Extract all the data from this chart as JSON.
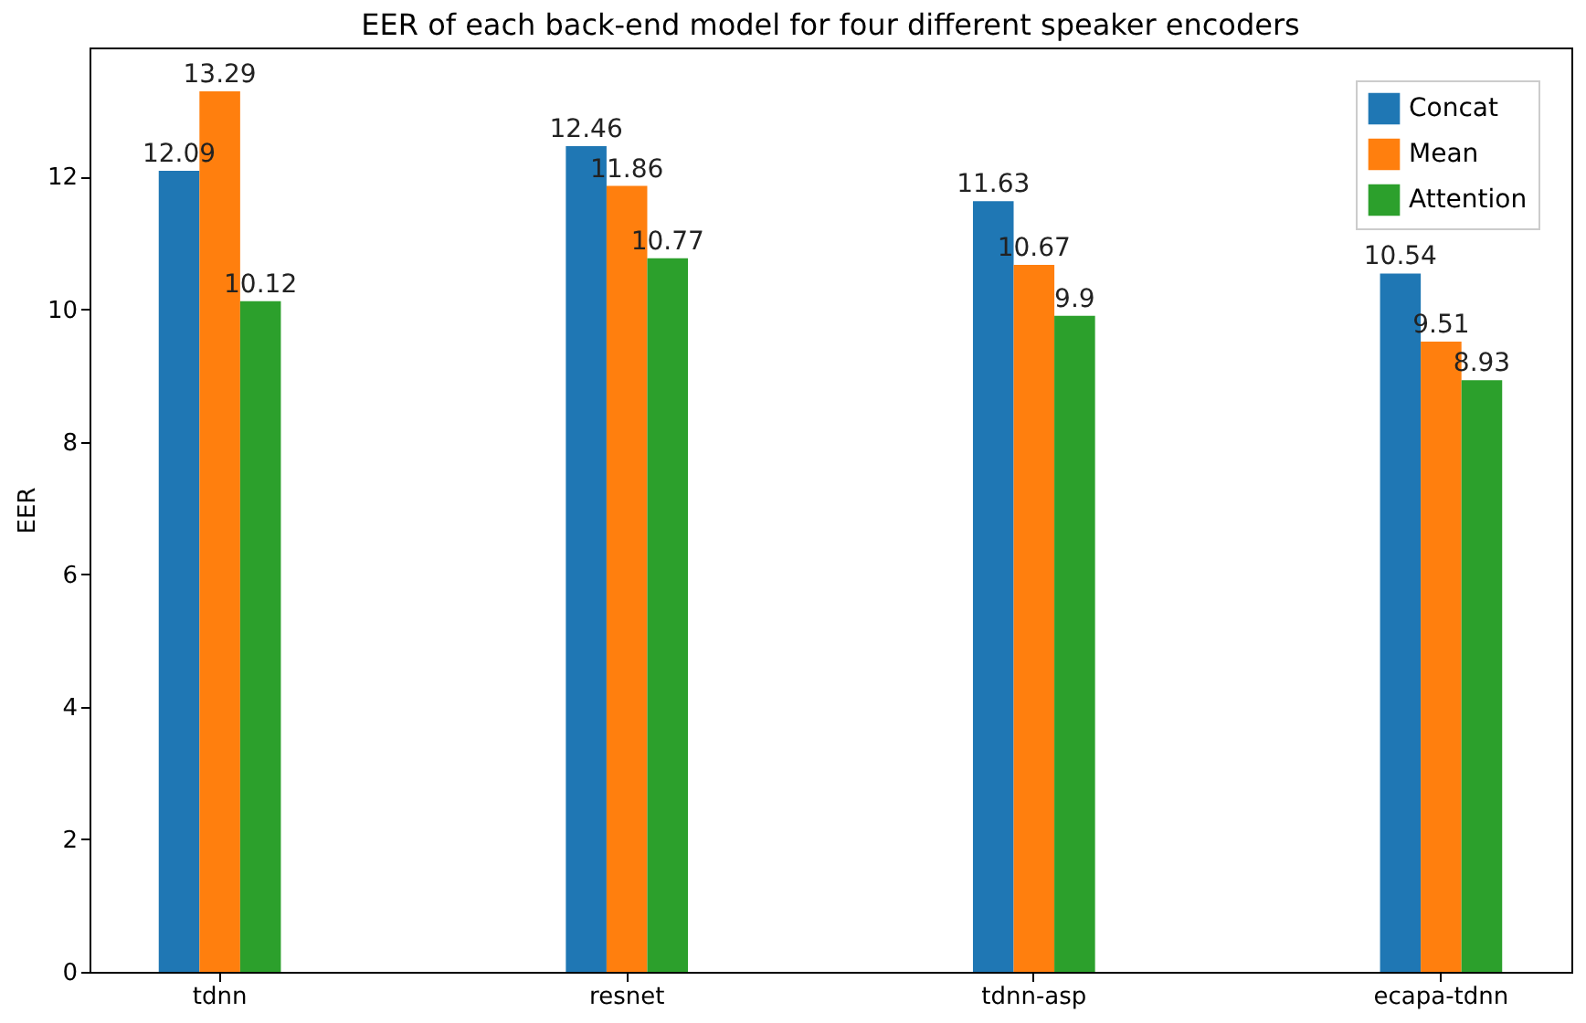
{
  "chart_data": {
    "type": "bar",
    "title": "EER of each back-end model for four different speaker encoders",
    "ylabel": "EER",
    "categories": [
      "tdnn",
      "resnet",
      "tdnn-asp",
      "ecapa-tdnn"
    ],
    "series": [
      {
        "name": "Concat",
        "color": "#1f77b4",
        "values": [
          12.09,
          12.46,
          11.63,
          10.54
        ]
      },
      {
        "name": "Mean",
        "color": "#ff7f0e",
        "values": [
          13.29,
          11.86,
          10.67,
          9.51
        ]
      },
      {
        "name": "Attention",
        "color": "#2ca02c",
        "values": [
          10.12,
          10.77,
          9.9,
          8.93
        ]
      }
    ],
    "ylim": [
      0,
      13.95
    ],
    "yticks": [
      0,
      2,
      4,
      6,
      8,
      10,
      12
    ],
    "grid": false,
    "legend": "top right",
    "data_labels": true
  }
}
